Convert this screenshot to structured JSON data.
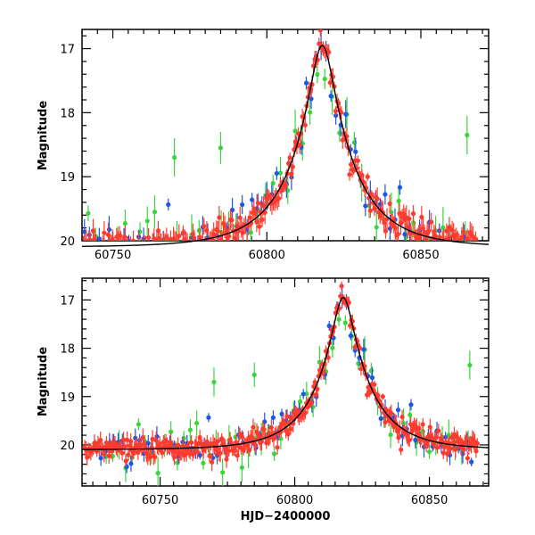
{
  "chart_data": [
    {
      "type": "scatter",
      "panel": "top",
      "title": "",
      "xlabel": "",
      "ylabel": "Magnitude",
      "xlim": [
        60740,
        60872
      ],
      "ylim": [
        20,
        16.7
      ],
      "y_inverted": true,
      "xticks": [
        60750,
        60800,
        60850
      ],
      "yticks": [
        17,
        18,
        19,
        20
      ],
      "grid": false,
      "legend": "none",
      "model_curve": {
        "t0": 60818,
        "peak_mag": 16.95,
        "base_mag": 20.1,
        "u0": 0.18,
        "tE": 20,
        "color": "#000000"
      },
      "series": [
        {
          "color": "#FF3B2F",
          "values": []
        },
        {
          "color": "#1F55E6",
          "values": []
        },
        {
          "color": "#39D63B",
          "values": []
        }
      ]
    },
    {
      "type": "scatter",
      "panel": "bottom",
      "title": "",
      "xlabel": "HJD−2400000",
      "ylabel": "Magnitude",
      "xlim": [
        60721,
        60872
      ],
      "ylim": [
        20.85,
        16.55
      ],
      "y_inverted": true,
      "xticks": [
        60750,
        60800,
        60850
      ],
      "yticks": [
        17,
        18,
        19,
        20
      ],
      "grid": false,
      "legend": "none",
      "model_curve": {
        "t0": 60818,
        "peak_mag": 16.95,
        "base_mag": 20.1,
        "u0": 0.18,
        "tE": 20,
        "color": "#000000"
      },
      "series": [
        {
          "color": "#FF3B2F",
          "values": []
        },
        {
          "color": "#1F55E6",
          "values": []
        },
        {
          "color": "#39D63B",
          "values": []
        }
      ]
    }
  ]
}
